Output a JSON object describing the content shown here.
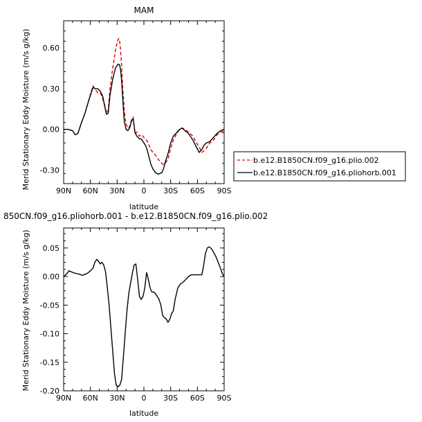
{
  "chart_data": [
    {
      "type": "line",
      "title": "MAM",
      "xlabel": "latitude",
      "ylabel": "Merid Stationary Eddy Moisture (m/s g/kg)",
      "xlim": [
        90,
        -90
      ],
      "ylim": [
        -0.4,
        0.8
      ],
      "x_tick_labels": [
        "90N",
        "60N",
        "30N",
        "0",
        "30S",
        "60S",
        "90S"
      ],
      "x_tick_values": [
        90,
        60,
        30,
        0,
        -30,
        -60,
        -90
      ],
      "y_tick_labels": [
        "-0.30",
        "0.00",
        "0.30",
        "0.60"
      ],
      "y_tick_values": [
        -0.3,
        0.0,
        0.3,
        0.6
      ],
      "legend_position": "right",
      "series": [
        {
          "name": "b.e12.B1850CN.f09_g16.plio.002",
          "color": "#e00000",
          "style": "dashed",
          "x": [
            90,
            85,
            80,
            77,
            74,
            70,
            66,
            62,
            60,
            57,
            55,
            52,
            50,
            48,
            46,
            44,
            42,
            40,
            38,
            35,
            32,
            30,
            29,
            28,
            27,
            26,
            25,
            24,
            22,
            20,
            18,
            16,
            14,
            12,
            10,
            8,
            5,
            3,
            1,
            0,
            -2,
            -4,
            -6,
            -8,
            -10,
            -13,
            -16,
            -20,
            -22,
            -24,
            -27,
            -30,
            -33,
            -36,
            -40,
            -43,
            -46,
            -50,
            -55,
            -58,
            -62,
            -65,
            -67,
            -70,
            -74,
            -78,
            -82,
            -86,
            -90
          ],
          "y": [
            0.0,
            0.0,
            -0.01,
            -0.04,
            -0.03,
            0.05,
            0.12,
            0.21,
            0.26,
            0.32,
            0.3,
            0.27,
            0.27,
            0.26,
            0.22,
            0.18,
            0.12,
            0.14,
            0.3,
            0.45,
            0.58,
            0.64,
            0.66,
            0.67,
            0.64,
            0.57,
            0.47,
            0.33,
            0.14,
            0.04,
            0.01,
            0.02,
            0.07,
            0.09,
            -0.03,
            -0.02,
            -0.05,
            -0.04,
            -0.05,
            -0.06,
            -0.07,
            -0.09,
            -0.12,
            -0.15,
            -0.17,
            -0.19,
            -0.22,
            -0.25,
            -0.26,
            -0.25,
            -0.22,
            -0.14,
            -0.08,
            -0.04,
            0.0,
            0.01,
            0.0,
            -0.02,
            -0.05,
            -0.09,
            -0.13,
            -0.17,
            -0.16,
            -0.14,
            -0.1,
            -0.08,
            -0.04,
            -0.02,
            -0.01
          ]
        },
        {
          "name": "b.e12.B1850CN.f09_g16.pliohorb.001",
          "color": "#000000",
          "style": "solid",
          "x": [
            90,
            85,
            80,
            77,
            74,
            70,
            66,
            62,
            60,
            57,
            55,
            52,
            50,
            48,
            46,
            44,
            42,
            40,
            38,
            35,
            32,
            30,
            29,
            28,
            27,
            26,
            25,
            24,
            22,
            20,
            18,
            16,
            14,
            12,
            10,
            8,
            5,
            3,
            1,
            0,
            -2,
            -4,
            -6,
            -8,
            -10,
            -13,
            -16,
            -20,
            -22,
            -24,
            -27,
            -30,
            -33,
            -36,
            -40,
            -43,
            -46,
            -50,
            -55,
            -58,
            -62,
            -65,
            -67,
            -70,
            -74,
            -78,
            -82,
            -86,
            -90
          ],
          "y": [
            0.0,
            0.0,
            -0.01,
            -0.04,
            -0.03,
            0.05,
            0.12,
            0.21,
            0.25,
            0.31,
            0.3,
            0.3,
            0.29,
            0.27,
            0.24,
            0.17,
            0.11,
            0.12,
            0.25,
            0.37,
            0.45,
            0.47,
            0.48,
            0.48,
            0.47,
            0.43,
            0.36,
            0.25,
            0.06,
            0.0,
            -0.01,
            0.01,
            0.06,
            0.08,
            -0.02,
            -0.05,
            -0.07,
            -0.07,
            -0.09,
            -0.1,
            -0.12,
            -0.16,
            -0.21,
            -0.26,
            -0.29,
            -0.32,
            -0.33,
            -0.32,
            -0.29,
            -0.24,
            -0.18,
            -0.1,
            -0.05,
            -0.03,
            0.0,
            0.01,
            -0.01,
            -0.03,
            -0.08,
            -0.12,
            -0.17,
            -0.15,
            -0.12,
            -0.1,
            -0.09,
            -0.06,
            -0.03,
            -0.01,
            0.0
          ]
        }
      ]
    },
    {
      "type": "line",
      "title": "850CN.f09_g16.pliohorb.001 - b.e12.B1850CN.f09_g16.plio.002",
      "xlabel": "latitude",
      "ylabel": "Merid Stationary Eddy Moisture (m/s g/kg)",
      "xlim": [
        90,
        -90
      ],
      "ylim": [
        -0.2,
        0.085
      ],
      "x_tick_labels": [
        "90N",
        "60N",
        "30N",
        "0",
        "30S",
        "60S",
        "90S"
      ],
      "x_tick_values": [
        90,
        60,
        30,
        0,
        -30,
        -60,
        -90
      ],
      "y_tick_labels": [
        "-0.20",
        "-0.15",
        "-0.10",
        "-0.05",
        "0.00",
        "0.05"
      ],
      "y_tick_values": [
        -0.2,
        -0.15,
        -0.1,
        -0.05,
        0.0,
        0.05
      ],
      "series": [
        {
          "name": "",
          "color": "#000000",
          "style": "solid",
          "x": [
            90,
            87,
            84,
            81,
            78,
            75,
            72,
            69,
            66,
            63,
            60,
            57,
            55,
            53,
            51,
            49,
            47,
            45,
            43,
            41,
            39,
            37,
            35,
            33,
            31,
            29,
            27,
            25,
            23,
            21,
            19,
            17,
            15,
            13,
            11,
            9,
            7,
            5,
            3,
            1,
            -1,
            -3,
            -5,
            -7,
            -9,
            -11,
            -13,
            -15,
            -17,
            -19,
            -21,
            -23,
            -25,
            -27,
            -29,
            -31,
            -33,
            -35,
            -38,
            -41,
            -44,
            -47,
            -50,
            -53,
            -56,
            -59,
            -62,
            -65,
            -67,
            -69,
            -71,
            -73,
            -75,
            -77,
            -79,
            -81,
            -83,
            -85,
            -88,
            -90
          ],
          "y": [
            0.0,
            0.004,
            0.01,
            0.008,
            0.006,
            0.005,
            0.004,
            0.002,
            0.004,
            0.006,
            0.01,
            0.015,
            0.025,
            0.03,
            0.027,
            0.022,
            0.025,
            0.02,
            0.008,
            -0.02,
            -0.05,
            -0.09,
            -0.13,
            -0.17,
            -0.19,
            -0.193,
            -0.19,
            -0.18,
            -0.14,
            -0.1,
            -0.06,
            -0.03,
            -0.012,
            0.005,
            0.02,
            0.022,
            -0.005,
            -0.035,
            -0.04,
            -0.035,
            -0.02,
            0.007,
            -0.005,
            -0.02,
            -0.027,
            -0.027,
            -0.03,
            -0.035,
            -0.04,
            -0.05,
            -0.068,
            -0.072,
            -0.074,
            -0.08,
            -0.075,
            -0.065,
            -0.06,
            -0.04,
            -0.02,
            -0.013,
            -0.01,
            -0.005,
            0.0,
            0.003,
            0.003,
            0.003,
            0.003,
            0.003,
            0.02,
            0.04,
            0.05,
            0.052,
            0.05,
            0.046,
            0.04,
            0.034,
            0.026,
            0.018,
            0.005,
            0.0
          ]
        }
      ]
    }
  ]
}
